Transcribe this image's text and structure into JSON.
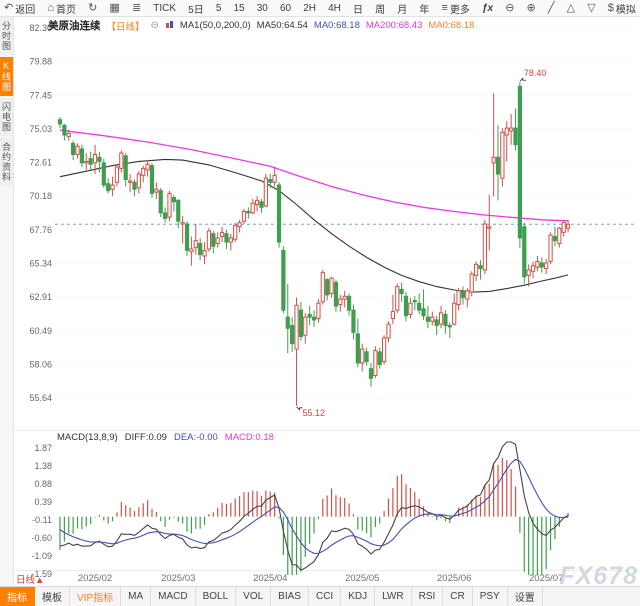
{
  "topbar": {
    "items": [
      {
        "name": "back-button",
        "icon": "back",
        "label": "返回"
      },
      {
        "name": "home-button",
        "icon": "home",
        "label": "首页"
      },
      {
        "name": "refresh-button",
        "icon": "refresh",
        "label": ""
      },
      {
        "name": "chart-style-button",
        "icon": "kline",
        "label": ""
      },
      {
        "name": "indicator-filter-button",
        "icon": "sliders",
        "label": ""
      },
      {
        "name": "period-tick",
        "icon": "",
        "label": "TICK"
      },
      {
        "name": "period-5d",
        "icon": "",
        "label": "5日"
      },
      {
        "name": "period-5m",
        "icon": "",
        "label": "5"
      },
      {
        "name": "period-15m",
        "icon": "",
        "label": "15"
      },
      {
        "name": "period-30m",
        "icon": "",
        "label": "30"
      },
      {
        "name": "period-60m",
        "icon": "",
        "label": "60"
      },
      {
        "name": "period-2h",
        "icon": "",
        "label": "2H"
      },
      {
        "name": "period-4h",
        "icon": "",
        "label": "4H"
      },
      {
        "name": "period-day",
        "icon": "",
        "label": "日"
      },
      {
        "name": "period-week",
        "icon": "",
        "label": "周"
      },
      {
        "name": "period-month",
        "icon": "",
        "label": "月"
      },
      {
        "name": "period-year",
        "icon": "",
        "label": "年"
      },
      {
        "name": "more-menu",
        "icon": "menu",
        "label": "更多"
      },
      {
        "name": "fx-indicator-button",
        "icon": "",
        "label": "ƒx"
      },
      {
        "name": "zoom-out-button",
        "icon": "zoom-out",
        "label": ""
      },
      {
        "name": "zoom-in-button",
        "icon": "zoom-in",
        "label": ""
      },
      {
        "name": "draw-tool-button",
        "icon": "draw",
        "label": ""
      },
      {
        "name": "triangle-up-button",
        "icon": "tri-up",
        "label": ""
      },
      {
        "name": "triangle-down-button",
        "icon": "tri-down",
        "label": ""
      },
      {
        "name": "simulate-trade-button",
        "icon": "dollar",
        "label": "模拟"
      }
    ],
    "icon_glyphs": {
      "back": "↶",
      "home": "⌂",
      "refresh": "↻",
      "kline": "▦",
      "sliders": "≣",
      "menu": "≡",
      "zoom-out": "⊖",
      "zoom-in": "⊕",
      "draw": "╱",
      "tri-up": "△",
      "tri-down": "▽",
      "dollar": "$"
    }
  },
  "sidebar": {
    "items": [
      {
        "name": "sidebar-item-time-chart",
        "label": "分时图",
        "active": false
      },
      {
        "name": "sidebar-item-kline-chart",
        "label": "K线图",
        "active": true
      },
      {
        "name": "sidebar-item-lightning-chart",
        "label": "闪电图",
        "active": false
      },
      {
        "name": "sidebar-item-contract-info",
        "label": "合约资料",
        "active": false
      }
    ]
  },
  "symbol_header": {
    "name": "美原油连续",
    "period": "【日线】",
    "collapse_icon": "⊖",
    "ma_settings": "MA1(50,0,200,0)",
    "ma50": "MA50:64.54",
    "ma0_blue": "MA0:68.18",
    "ma200": "MA200:68.43",
    "ma0_orange": "MA0:68.18"
  },
  "macd_header": {
    "title": "MACD(13,8,9)",
    "diff": "DIFF:0.09",
    "dea": "DEA:-0.00",
    "macd": "MACD:0.18"
  },
  "footer": {
    "period_label": "日线▲",
    "watermark": "FX678",
    "tabs": [
      {
        "name": "tab-indicator",
        "label": "指标",
        "active": true,
        "vip": false
      },
      {
        "name": "tab-template",
        "label": "模板",
        "active": false,
        "vip": false
      },
      {
        "name": "tab-vip-indicator",
        "label": "VIP指标",
        "active": false,
        "vip": true
      },
      {
        "name": "tab-ma",
        "label": "MA",
        "active": false,
        "vip": false
      },
      {
        "name": "tab-macd",
        "label": "MACD",
        "active": false,
        "vip": false
      },
      {
        "name": "tab-boll",
        "label": "BOLL",
        "active": false,
        "vip": false
      },
      {
        "name": "tab-vol",
        "label": "VOL",
        "active": false,
        "vip": false
      },
      {
        "name": "tab-bias",
        "label": "BIAS",
        "active": false,
        "vip": false
      },
      {
        "name": "tab-cci",
        "label": "CCI",
        "active": false,
        "vip": false
      },
      {
        "name": "tab-kdj",
        "label": "KDJ",
        "active": false,
        "vip": false
      },
      {
        "name": "tab-lwr",
        "label": "LWR",
        "active": false,
        "vip": false
      },
      {
        "name": "tab-rsi",
        "label": "RSI",
        "active": false,
        "vip": false
      },
      {
        "name": "tab-cr",
        "label": "CR",
        "active": false,
        "vip": false
      },
      {
        "name": "tab-psy",
        "label": "PSY",
        "active": false,
        "vip": false
      },
      {
        "name": "tab-settings",
        "label": "设置",
        "active": false,
        "vip": false
      }
    ]
  },
  "chart_data": {
    "type": "candlestick",
    "symbol": "美原油连续",
    "timeframe": "日线",
    "last_price": 68.18,
    "price_axis_ticks": [
      "82.30",
      "79.88",
      "77.45",
      "75.03",
      "72.61",
      "70.18",
      "67.76",
      "65.34",
      "62.91",
      "60.49",
      "58.06",
      "55.64"
    ],
    "x_labels": [
      {
        "text": "2025/02",
        "index": 8
      },
      {
        "text": "2025/03",
        "index": 27
      },
      {
        "text": "2025/04",
        "index": 48
      },
      {
        "text": "2025/05",
        "index": 69
      },
      {
        "text": "2025/06",
        "index": 90
      },
      {
        "text": "2025/07",
        "index": 111
      }
    ],
    "annotations": [
      {
        "kind": "high",
        "text": "78.40",
        "index": 105,
        "value": 78.4
      },
      {
        "kind": "low",
        "text": "55.12",
        "index": 54,
        "value": 55.12
      }
    ],
    "candles": [
      [
        75.7,
        75.9,
        75.1,
        75.4
      ],
      [
        75.3,
        75.4,
        74.2,
        74.6
      ],
      [
        74.5,
        75.0,
        74.2,
        74.7
      ],
      [
        74.0,
        74.2,
        72.8,
        73.2
      ],
      [
        73.2,
        74.0,
        72.9,
        73.8
      ],
      [
        73.6,
        73.9,
        72.3,
        72.6
      ],
      [
        72.6,
        73.3,
        72.1,
        72.7
      ],
      [
        72.9,
        73.4,
        72.1,
        72.5
      ],
      [
        72.6,
        73.9,
        71.8,
        73.2
      ],
      [
        73.0,
        73.4,
        71.9,
        72.7
      ],
      [
        72.6,
        72.9,
        70.8,
        71.0
      ],
      [
        71.1,
        71.5,
        70.4,
        70.6
      ],
      [
        70.7,
        71.6,
        70.2,
        71.0
      ],
      [
        71.2,
        72.5,
        70.9,
        72.3
      ],
      [
        72.2,
        73.5,
        71.9,
        73.3
      ],
      [
        73.1,
        73.3,
        70.9,
        71.4
      ],
      [
        71.2,
        71.8,
        70.5,
        71.3
      ],
      [
        71.2,
        71.4,
        70.2,
        70.7
      ],
      [
        70.8,
        72.0,
        70.4,
        71.8
      ],
      [
        71.7,
        72.4,
        71.2,
        72.2
      ],
      [
        72.1,
        72.8,
        71.6,
        72.5
      ],
      [
        72.4,
        72.6,
        70.1,
        70.4
      ],
      [
        70.5,
        71.2,
        70.0,
        70.7
      ],
      [
        70.6,
        70.8,
        68.7,
        69.0
      ],
      [
        69.0,
        69.4,
        68.3,
        68.6
      ],
      [
        68.7,
        70.6,
        68.4,
        70.4
      ],
      [
        70.1,
        70.3,
        69.1,
        69.8
      ],
      [
        69.9,
        70.0,
        67.9,
        68.4
      ],
      [
        68.2,
        68.8,
        66.8,
        68.3
      ],
      [
        68.2,
        68.4,
        65.9,
        66.3
      ],
      [
        66.2,
        67.3,
        65.2,
        66.4
      ],
      [
        66.5,
        68.2,
        66.0,
        67.0
      ],
      [
        66.8,
        67.2,
        65.6,
        66.0
      ],
      [
        65.9,
        66.9,
        65.3,
        66.3
      ],
      [
        66.4,
        67.9,
        66.2,
        67.7
      ],
      [
        67.5,
        67.7,
        66.1,
        66.6
      ],
      [
        66.8,
        67.6,
        66.5,
        67.2
      ],
      [
        67.3,
        68.0,
        66.9,
        67.6
      ],
      [
        67.5,
        67.8,
        66.4,
        66.9
      ],
      [
        66.9,
        67.5,
        66.3,
        67.2
      ],
      [
        67.1,
        68.3,
        66.9,
        68.1
      ],
      [
        68.0,
        68.5,
        67.6,
        68.3
      ],
      [
        68.4,
        69.3,
        68.2,
        69.1
      ],
      [
        69.1,
        69.4,
        68.6,
        69.0
      ],
      [
        69.0,
        70.0,
        68.9,
        69.7
      ],
      [
        69.6,
        70.2,
        69.1,
        69.9
      ],
      [
        69.8,
        70.0,
        69.0,
        69.4
      ],
      [
        69.5,
        71.8,
        69.4,
        71.5
      ],
      [
        71.4,
        71.8,
        70.8,
        71.2
      ],
      [
        71.2,
        72.3,
        70.9,
        71.7
      ],
      [
        71.0,
        71.2,
        66.5,
        66.9
      ],
      [
        66.3,
        66.6,
        61.8,
        62.0
      ],
      [
        61.5,
        63.9,
        58.9,
        60.7
      ],
      [
        60.9,
        61.5,
        59.0,
        59.6
      ],
      [
        59.2,
        62.9,
        55.12,
        62.35
      ],
      [
        62.0,
        62.6,
        59.8,
        60.1
      ],
      [
        60.2,
        61.8,
        59.6,
        61.5
      ],
      [
        61.7,
        62.3,
        60.9,
        61.5
      ],
      [
        61.5,
        62.0,
        60.8,
        61.3
      ],
      [
        61.4,
        62.8,
        61.1,
        62.5
      ],
      [
        62.6,
        64.9,
        62.4,
        64.7
      ],
      [
        64.2,
        64.3,
        62.7,
        63.1
      ],
      [
        63.2,
        64.4,
        62.9,
        64.3
      ],
      [
        64.0,
        64.2,
        61.9,
        62.3
      ],
      [
        62.4,
        63.1,
        61.9,
        62.8
      ],
      [
        62.8,
        63.4,
        62.2,
        63.0
      ],
      [
        63.0,
        63.2,
        61.6,
        62.0
      ],
      [
        62.0,
        62.4,
        59.9,
        60.4
      ],
      [
        60.3,
        61.4,
        57.9,
        58.2
      ],
      [
        58.2,
        59.6,
        57.6,
        59.2
      ],
      [
        59.0,
        59.3,
        58.0,
        58.3
      ],
      [
        57.8,
        58.2,
        56.5,
        57.1
      ],
      [
        57.3,
        59.4,
        57.1,
        59.1
      ],
      [
        59.0,
        59.3,
        57.8,
        58.1
      ],
      [
        58.3,
        60.2,
        58.1,
        60.0
      ],
      [
        60.0,
        61.2,
        59.7,
        61.0
      ],
      [
        61.4,
        63.1,
        61.0,
        61.9
      ],
      [
        62.0,
        63.9,
        61.8,
        63.7
      ],
      [
        63.5,
        64.0,
        62.6,
        63.2
      ],
      [
        63.0,
        63.3,
        61.2,
        61.6
      ],
      [
        61.7,
        62.9,
        61.4,
        62.5
      ],
      [
        62.7,
        63.0,
        62.0,
        62.6
      ],
      [
        62.5,
        63.2,
        61.7,
        62.0
      ],
      [
        62.1,
        63.5,
        61.3,
        61.6
      ],
      [
        61.5,
        62.3,
        60.7,
        61.2
      ],
      [
        61.2,
        61.9,
        60.9,
        61.5
      ],
      [
        61.3,
        61.6,
        60.2,
        60.9
      ],
      [
        61.0,
        62.3,
        60.7,
        61.8
      ],
      [
        61.7,
        62.0,
        60.3,
        60.9
      ],
      [
        60.9,
        61.1,
        60.0,
        60.8
      ],
      [
        61.0,
        63.2,
        60.9,
        62.5
      ],
      [
        62.4,
        63.6,
        62.0,
        63.4
      ],
      [
        63.3,
        63.7,
        62.4,
        62.9
      ],
      [
        62.8,
        63.6,
        62.2,
        63.4
      ],
      [
        63.3,
        64.8,
        63.0,
        64.6
      ],
      [
        64.5,
        65.5,
        64.1,
        65.3
      ],
      [
        65.2,
        65.6,
        64.2,
        65.0
      ],
      [
        64.9,
        68.5,
        64.6,
        68.2
      ],
      [
        67.9,
        70.3,
        66.3,
        68.0
      ],
      [
        72.6,
        77.6,
        70.2,
        73.0
      ],
      [
        73.0,
        75.3,
        69.9,
        71.8
      ],
      [
        71.5,
        75.1,
        70.9,
        74.8
      ],
      [
        74.6,
        75.6,
        72.7,
        75.1
      ],
      [
        74.9,
        76.1,
        73.9,
        75.1
      ],
      [
        75.1,
        76.5,
        73.5,
        73.9
      ],
      [
        78.1,
        78.4,
        66.5,
        67.2
      ],
      [
        68.0,
        68.3,
        63.9,
        64.4
      ],
      [
        64.5,
        65.3,
        63.7,
        64.9
      ],
      [
        64.8,
        65.5,
        64.3,
        65.2
      ],
      [
        65.1,
        65.9,
        64.8,
        65.5
      ],
      [
        65.4,
        65.8,
        64.7,
        65.1
      ],
      [
        65.0,
        65.7,
        64.6,
        65.4
      ],
      [
        65.5,
        67.6,
        65.3,
        67.4
      ],
      [
        67.3,
        68.0,
        66.6,
        67.0
      ],
      [
        66.8,
        68.0,
        66.5,
        67.9
      ],
      [
        67.6,
        68.4,
        67.3,
        68.3
      ],
      [
        67.9,
        68.5,
        67.6,
        68.18
      ]
    ],
    "ma50_points": [
      [
        0,
        71.6
      ],
      [
        6,
        72.0
      ],
      [
        12,
        72.4
      ],
      [
        18,
        72.7
      ],
      [
        24,
        72.85
      ],
      [
        28,
        72.8
      ],
      [
        34,
        72.45
      ],
      [
        40,
        71.9
      ],
      [
        46,
        71.3
      ],
      [
        50,
        70.6
      ],
      [
        54,
        69.6
      ],
      [
        58,
        68.5
      ],
      [
        62,
        67.5
      ],
      [
        66,
        66.6
      ],
      [
        70,
        65.8
      ],
      [
        74,
        65.1
      ],
      [
        78,
        64.5
      ],
      [
        82,
        64.05
      ],
      [
        86,
        63.7
      ],
      [
        90,
        63.45
      ],
      [
        94,
        63.3
      ],
      [
        98,
        63.35
      ],
      [
        102,
        63.55
      ],
      [
        106,
        63.8
      ],
      [
        110,
        64.1
      ],
      [
        113,
        64.3
      ],
      [
        116,
        64.54
      ]
    ],
    "ma200_points": [
      [
        0,
        74.95
      ],
      [
        10,
        74.55
      ],
      [
        20,
        74.1
      ],
      [
        30,
        73.55
      ],
      [
        40,
        72.9
      ],
      [
        48,
        72.35
      ],
      [
        55,
        71.6
      ],
      [
        62,
        70.9
      ],
      [
        69,
        70.3
      ],
      [
        76,
        69.8
      ],
      [
        83,
        69.4
      ],
      [
        90,
        69.1
      ],
      [
        97,
        68.85
      ],
      [
        104,
        68.65
      ],
      [
        110,
        68.5
      ],
      [
        116,
        68.43
      ]
    ],
    "macd": {
      "params": [
        13,
        8,
        9
      ],
      "axis_ticks": [
        "1.87",
        "1.38",
        "0.88",
        "0.39",
        "-0.11",
        "-0.60",
        "-1.09",
        "-1.59"
      ],
      "last": {
        "diff": "0.09",
        "dea": "-0.00",
        "macd": "0.18"
      }
    },
    "colors": {
      "up": "#cd5248",
      "down": "#3f9e4f",
      "ma_fast": "#333333",
      "ma_slow": "#ee3ae2",
      "diff_line": "#444444",
      "dea_line": "#4053b4",
      "price_line": "#7aa0d4",
      "annotation": "#d04a42",
      "accent": "#ff8000"
    }
  }
}
